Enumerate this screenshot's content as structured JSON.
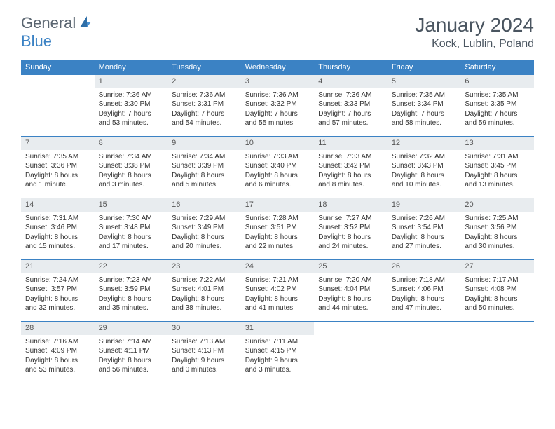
{
  "brand": {
    "part1": "General",
    "part2": "Blue"
  },
  "title": "January 2024",
  "location": "Kock, Lublin, Poland",
  "dayNames": [
    "Sunday",
    "Monday",
    "Tuesday",
    "Wednesday",
    "Thursday",
    "Friday",
    "Saturday"
  ],
  "colors": {
    "headerBg": "#3b82c4",
    "headerText": "#ffffff",
    "dayNumBg": "#e8ecef",
    "bodyText": "#333333",
    "titleText": "#4a5560",
    "logoGray": "#5a6570",
    "logoBlue": "#3b82c4",
    "rowBorder": "#3b82c4"
  },
  "weeks": [
    [
      {
        "n": "",
        "sr": "",
        "ss": "",
        "d1": "",
        "d2": ""
      },
      {
        "n": "1",
        "sr": "Sunrise: 7:36 AM",
        "ss": "Sunset: 3:30 PM",
        "d1": "Daylight: 7 hours",
        "d2": "and 53 minutes."
      },
      {
        "n": "2",
        "sr": "Sunrise: 7:36 AM",
        "ss": "Sunset: 3:31 PM",
        "d1": "Daylight: 7 hours",
        "d2": "and 54 minutes."
      },
      {
        "n": "3",
        "sr": "Sunrise: 7:36 AM",
        "ss": "Sunset: 3:32 PM",
        "d1": "Daylight: 7 hours",
        "d2": "and 55 minutes."
      },
      {
        "n": "4",
        "sr": "Sunrise: 7:36 AM",
        "ss": "Sunset: 3:33 PM",
        "d1": "Daylight: 7 hours",
        "d2": "and 57 minutes."
      },
      {
        "n": "5",
        "sr": "Sunrise: 7:35 AM",
        "ss": "Sunset: 3:34 PM",
        "d1": "Daylight: 7 hours",
        "d2": "and 58 minutes."
      },
      {
        "n": "6",
        "sr": "Sunrise: 7:35 AM",
        "ss": "Sunset: 3:35 PM",
        "d1": "Daylight: 7 hours",
        "d2": "and 59 minutes."
      }
    ],
    [
      {
        "n": "7",
        "sr": "Sunrise: 7:35 AM",
        "ss": "Sunset: 3:36 PM",
        "d1": "Daylight: 8 hours",
        "d2": "and 1 minute."
      },
      {
        "n": "8",
        "sr": "Sunrise: 7:34 AM",
        "ss": "Sunset: 3:38 PM",
        "d1": "Daylight: 8 hours",
        "d2": "and 3 minutes."
      },
      {
        "n": "9",
        "sr": "Sunrise: 7:34 AM",
        "ss": "Sunset: 3:39 PM",
        "d1": "Daylight: 8 hours",
        "d2": "and 5 minutes."
      },
      {
        "n": "10",
        "sr": "Sunrise: 7:33 AM",
        "ss": "Sunset: 3:40 PM",
        "d1": "Daylight: 8 hours",
        "d2": "and 6 minutes."
      },
      {
        "n": "11",
        "sr": "Sunrise: 7:33 AM",
        "ss": "Sunset: 3:42 PM",
        "d1": "Daylight: 8 hours",
        "d2": "and 8 minutes."
      },
      {
        "n": "12",
        "sr": "Sunrise: 7:32 AM",
        "ss": "Sunset: 3:43 PM",
        "d1": "Daylight: 8 hours",
        "d2": "and 10 minutes."
      },
      {
        "n": "13",
        "sr": "Sunrise: 7:31 AM",
        "ss": "Sunset: 3:45 PM",
        "d1": "Daylight: 8 hours",
        "d2": "and 13 minutes."
      }
    ],
    [
      {
        "n": "14",
        "sr": "Sunrise: 7:31 AM",
        "ss": "Sunset: 3:46 PM",
        "d1": "Daylight: 8 hours",
        "d2": "and 15 minutes."
      },
      {
        "n": "15",
        "sr": "Sunrise: 7:30 AM",
        "ss": "Sunset: 3:48 PM",
        "d1": "Daylight: 8 hours",
        "d2": "and 17 minutes."
      },
      {
        "n": "16",
        "sr": "Sunrise: 7:29 AM",
        "ss": "Sunset: 3:49 PM",
        "d1": "Daylight: 8 hours",
        "d2": "and 20 minutes."
      },
      {
        "n": "17",
        "sr": "Sunrise: 7:28 AM",
        "ss": "Sunset: 3:51 PM",
        "d1": "Daylight: 8 hours",
        "d2": "and 22 minutes."
      },
      {
        "n": "18",
        "sr": "Sunrise: 7:27 AM",
        "ss": "Sunset: 3:52 PM",
        "d1": "Daylight: 8 hours",
        "d2": "and 24 minutes."
      },
      {
        "n": "19",
        "sr": "Sunrise: 7:26 AM",
        "ss": "Sunset: 3:54 PM",
        "d1": "Daylight: 8 hours",
        "d2": "and 27 minutes."
      },
      {
        "n": "20",
        "sr": "Sunrise: 7:25 AM",
        "ss": "Sunset: 3:56 PM",
        "d1": "Daylight: 8 hours",
        "d2": "and 30 minutes."
      }
    ],
    [
      {
        "n": "21",
        "sr": "Sunrise: 7:24 AM",
        "ss": "Sunset: 3:57 PM",
        "d1": "Daylight: 8 hours",
        "d2": "and 32 minutes."
      },
      {
        "n": "22",
        "sr": "Sunrise: 7:23 AM",
        "ss": "Sunset: 3:59 PM",
        "d1": "Daylight: 8 hours",
        "d2": "and 35 minutes."
      },
      {
        "n": "23",
        "sr": "Sunrise: 7:22 AM",
        "ss": "Sunset: 4:01 PM",
        "d1": "Daylight: 8 hours",
        "d2": "and 38 minutes."
      },
      {
        "n": "24",
        "sr": "Sunrise: 7:21 AM",
        "ss": "Sunset: 4:02 PM",
        "d1": "Daylight: 8 hours",
        "d2": "and 41 minutes."
      },
      {
        "n": "25",
        "sr": "Sunrise: 7:20 AM",
        "ss": "Sunset: 4:04 PM",
        "d1": "Daylight: 8 hours",
        "d2": "and 44 minutes."
      },
      {
        "n": "26",
        "sr": "Sunrise: 7:18 AM",
        "ss": "Sunset: 4:06 PM",
        "d1": "Daylight: 8 hours",
        "d2": "and 47 minutes."
      },
      {
        "n": "27",
        "sr": "Sunrise: 7:17 AM",
        "ss": "Sunset: 4:08 PM",
        "d1": "Daylight: 8 hours",
        "d2": "and 50 minutes."
      }
    ],
    [
      {
        "n": "28",
        "sr": "Sunrise: 7:16 AM",
        "ss": "Sunset: 4:09 PM",
        "d1": "Daylight: 8 hours",
        "d2": "and 53 minutes."
      },
      {
        "n": "29",
        "sr": "Sunrise: 7:14 AM",
        "ss": "Sunset: 4:11 PM",
        "d1": "Daylight: 8 hours",
        "d2": "and 56 minutes."
      },
      {
        "n": "30",
        "sr": "Sunrise: 7:13 AM",
        "ss": "Sunset: 4:13 PM",
        "d1": "Daylight: 9 hours",
        "d2": "and 0 minutes."
      },
      {
        "n": "31",
        "sr": "Sunrise: 7:11 AM",
        "ss": "Sunset: 4:15 PM",
        "d1": "Daylight: 9 hours",
        "d2": "and 3 minutes."
      },
      {
        "n": "",
        "sr": "",
        "ss": "",
        "d1": "",
        "d2": ""
      },
      {
        "n": "",
        "sr": "",
        "ss": "",
        "d1": "",
        "d2": ""
      },
      {
        "n": "",
        "sr": "",
        "ss": "",
        "d1": "",
        "d2": ""
      }
    ]
  ]
}
